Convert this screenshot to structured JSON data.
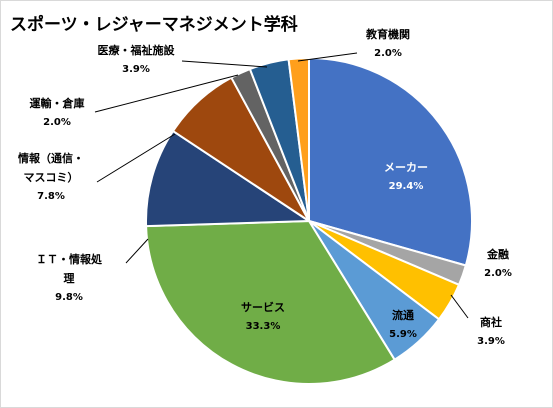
{
  "chart_data": {
    "type": "pie",
    "title": "スポーツ・レジャーマネジメント学科",
    "slices": [
      {
        "label": "メーカー",
        "label_lines": [
          "メーカー"
        ],
        "value": 29.4,
        "value_label": "29.4%",
        "color": "#4472C4",
        "label_color": "#ffffff"
      },
      {
        "label": "金融",
        "label_lines": [
          "金融"
        ],
        "value": 2.0,
        "value_label": "2.0%",
        "color": "#A5A5A5",
        "label_color": "#000000"
      },
      {
        "label": "商社",
        "label_lines": [
          "商社"
        ],
        "value": 3.9,
        "value_label": "3.9%",
        "color": "#FFC000",
        "label_color": "#000000"
      },
      {
        "label": "流通",
        "label_lines": [
          "流通"
        ],
        "value": 5.9,
        "value_label": "5.9%",
        "color": "#5B9BD5",
        "label_color": "#000000"
      },
      {
        "label": "サービス",
        "label_lines": [
          "サービス"
        ],
        "value": 33.3,
        "value_label": "33.3%",
        "color": "#70AD47",
        "label_color": "#000000"
      },
      {
        "label": "ＩＴ・情報処理",
        "label_lines": [
          "ＩＴ・情報処",
          "理"
        ],
        "value": 9.8,
        "value_label": "9.8%",
        "color": "#264478",
        "label_color": "#000000"
      },
      {
        "label": "情報（通信・マスコミ）",
        "label_lines": [
          "情報（通信・",
          "マスコミ）"
        ],
        "value": 7.8,
        "value_label": "7.8%",
        "color": "#9E480E",
        "label_color": "#000000"
      },
      {
        "label": "運輸・倉庫",
        "label_lines": [
          "運輸・倉庫"
        ],
        "value": 2.0,
        "value_label": "2.0%",
        "color": "#636363",
        "label_color": "#000000"
      },
      {
        "label": "医療・福祉施設",
        "label_lines": [
          "医療・福祉施設"
        ],
        "value": 3.9,
        "value_label": "3.9%",
        "color": "#255E91",
        "label_color": "#000000"
      },
      {
        "label": "教育機関",
        "label_lines": [
          "教育機関"
        ],
        "value": 2.0,
        "value_label": "2.0%",
        "color": "#FF9F1C",
        "label_color": "#000000"
      }
    ],
    "legend": "none"
  }
}
